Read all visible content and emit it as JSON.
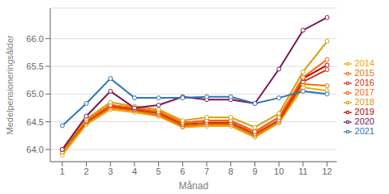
{
  "chart_data": {
    "type": "line",
    "xlabel": "Månad",
    "ylabel": "Medelpensioneringsålder",
    "x": [
      1,
      2,
      3,
      4,
      5,
      6,
      7,
      8,
      9,
      10,
      11,
      12
    ],
    "series": [
      {
        "name": "2014",
        "color": "#f0a800",
        "values": [
          63.9,
          64.45,
          64.72,
          64.67,
          64.6,
          64.4,
          64.42,
          64.42,
          64.22,
          64.48,
          65.12,
          65.06
        ]
      },
      {
        "name": "2015",
        "color": "#e07800",
        "values": [
          63.95,
          64.48,
          64.75,
          64.7,
          64.62,
          64.42,
          64.45,
          64.45,
          64.25,
          64.5,
          65.18,
          65.15
        ]
      },
      {
        "name": "2016",
        "color": "#d43000",
        "values": [
          64.0,
          64.5,
          64.78,
          64.72,
          64.65,
          64.45,
          64.48,
          64.48,
          64.28,
          64.53,
          65.22,
          65.44
        ]
      },
      {
        "name": "2019",
        "color": "#c00000",
        "values": [
          64.0,
          64.52,
          64.8,
          64.75,
          64.68,
          64.48,
          64.52,
          64.52,
          64.32,
          64.58,
          65.28,
          65.52
        ]
      },
      {
        "name": "2017",
        "color": "#ff6600",
        "values": [
          64.0,
          64.52,
          64.8,
          64.75,
          64.68,
          64.48,
          64.52,
          64.52,
          64.32,
          64.58,
          65.3,
          65.62
        ]
      },
      {
        "name": "2018",
        "color": "#d4a000",
        "values": [
          64.0,
          64.55,
          64.85,
          64.78,
          64.72,
          64.52,
          64.58,
          64.58,
          64.4,
          64.65,
          65.4,
          65.95
        ]
      },
      {
        "name": "2020",
        "color": "#7b1457",
        "values": [
          64.0,
          64.6,
          65.05,
          64.75,
          64.8,
          64.95,
          64.9,
          64.9,
          64.83,
          65.45,
          66.15,
          66.38
        ]
      },
      {
        "name": "2021",
        "color": "#2e75b6",
        "values": [
          64.43,
          64.83,
          65.28,
          64.93,
          64.93,
          64.93,
          64.95,
          64.95,
          64.83,
          64.93,
          65.05,
          65.0
        ]
      }
    ],
    "xlim": [
      0.5,
      12.4
    ],
    "xticks": [
      1,
      2,
      3,
      4,
      5,
      6,
      7,
      8,
      9,
      10,
      11,
      12
    ],
    "ylim": [
      63.78,
      66.55
    ],
    "yticks": [
      {
        "value": 64.0,
        "label": "64.0"
      },
      64.5,
      {
        "value": 65.0,
        "label": "65.0"
      },
      65.5,
      {
        "value": 66.0,
        "label": "66.0"
      }
    ],
    "grid": true,
    "legend": "right",
    "marker": "circle",
    "line_style": "solid"
  }
}
